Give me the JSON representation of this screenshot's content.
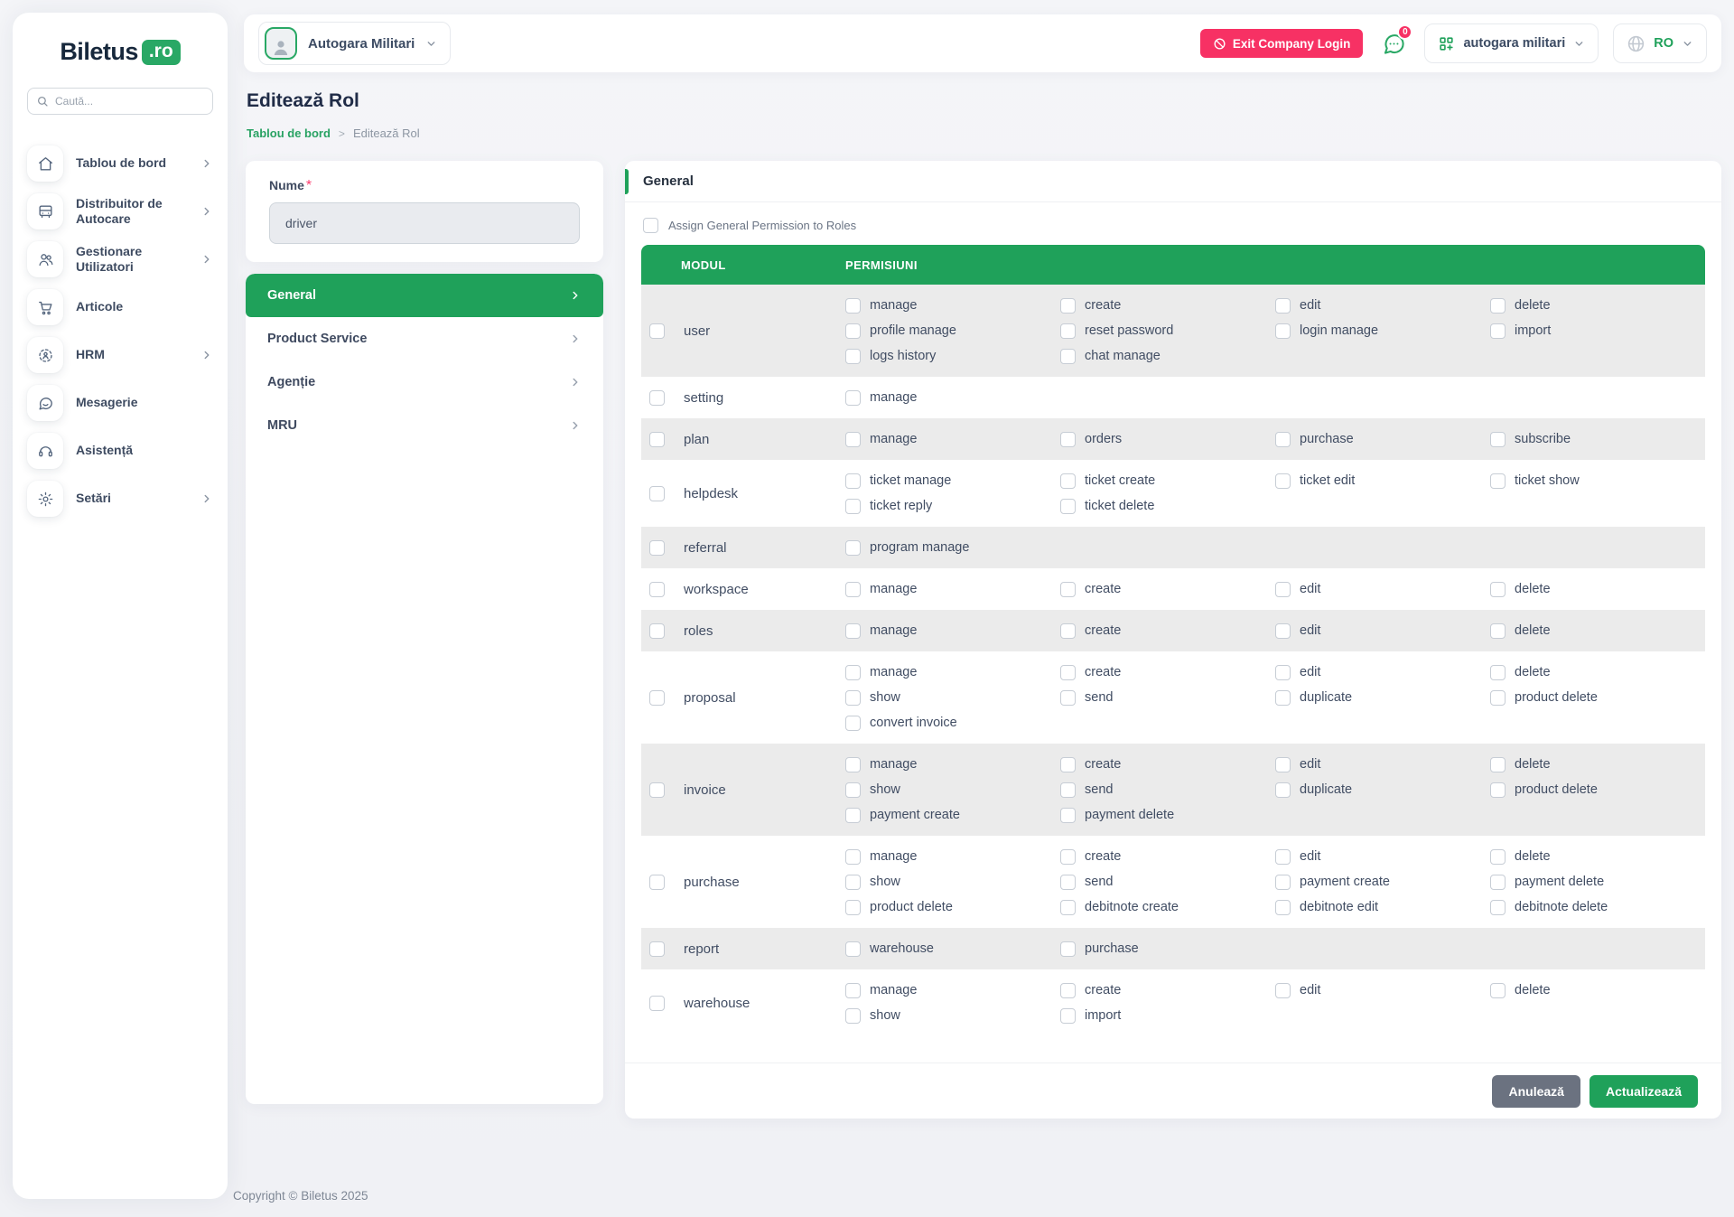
{
  "colors": {
    "primary_green": "#1fa15a",
    "pink": "#f73164",
    "stripe_gray": "#ebebeb",
    "dark_navy": "#17283c"
  },
  "sidebar": {
    "logo_text": "Biletus",
    "logo_badge": ".ro",
    "search_placeholder": "Caută...",
    "items": [
      {
        "label": "Tablou de bord",
        "icon": "home",
        "chevron": true
      },
      {
        "label": "Distribuitor de Autocare",
        "icon": "bus",
        "chevron": true
      },
      {
        "label": "Gestionare Utilizatori",
        "icon": "users",
        "chevron": true
      },
      {
        "label": "Articole",
        "icon": "cart",
        "chevron": false
      },
      {
        "label": "HRM",
        "icon": "hrm",
        "chevron": true
      },
      {
        "label": "Mesagerie",
        "icon": "chat",
        "chevron": false
      },
      {
        "label": "Asistență",
        "icon": "headset",
        "chevron": false
      },
      {
        "label": "Setări",
        "icon": "gear",
        "chevron": true
      }
    ]
  },
  "header": {
    "company_selector": "Autogara Militari",
    "exit_button": "Exit Company Login",
    "notification_badge": "0",
    "workspace_selector": "autogara militari",
    "language": "RO"
  },
  "page": {
    "title": "Editează Rol",
    "breadcrumb_home": "Tablou de bord",
    "breadcrumb_sep": ">",
    "breadcrumb_current": "Editează Rol"
  },
  "form": {
    "name_label": "Nume",
    "required_mark": "*",
    "name_value": "driver"
  },
  "tabs": [
    {
      "label": "General",
      "active": true
    },
    {
      "label": "Product Service",
      "active": false
    },
    {
      "label": "Agenție",
      "active": false
    },
    {
      "label": "MRU",
      "active": false
    }
  ],
  "panel": {
    "title": "General",
    "assign_checkbox_label": "Assign General Permission to Roles",
    "table": {
      "columns": [
        "MODUL",
        "PERMISIUNI"
      ],
      "rows": [
        {
          "module": "user",
          "permissions": [
            "manage",
            "create",
            "edit",
            "delete",
            "profile manage",
            "reset password",
            "login manage",
            "import",
            "logs history",
            "chat manage"
          ]
        },
        {
          "module": "setting",
          "permissions": [
            "manage"
          ]
        },
        {
          "module": "plan",
          "permissions": [
            "manage",
            "orders",
            "purchase",
            "subscribe"
          ]
        },
        {
          "module": "helpdesk",
          "permissions": [
            "ticket manage",
            "ticket create",
            "ticket edit",
            "ticket show",
            "ticket reply",
            "ticket delete"
          ]
        },
        {
          "module": "referral",
          "permissions": [
            "program manage"
          ]
        },
        {
          "module": "workspace",
          "permissions": [
            "manage",
            "create",
            "edit",
            "delete"
          ]
        },
        {
          "module": "roles",
          "permissions": [
            "manage",
            "create",
            "edit",
            "delete"
          ]
        },
        {
          "module": "proposal",
          "permissions": [
            "manage",
            "create",
            "edit",
            "delete",
            "show",
            "send",
            "duplicate",
            "product delete",
            "convert invoice"
          ]
        },
        {
          "module": "invoice",
          "permissions": [
            "manage",
            "create",
            "edit",
            "delete",
            "show",
            "send",
            "duplicate",
            "product delete",
            "payment create",
            "payment delete"
          ]
        },
        {
          "module": "purchase",
          "permissions": [
            "manage",
            "create",
            "edit",
            "delete",
            "show",
            "send",
            "payment create",
            "payment delete",
            "product delete",
            "debitnote create",
            "debitnote edit",
            "debitnote delete"
          ]
        },
        {
          "module": "report",
          "permissions": [
            "warehouse",
            "purchase"
          ]
        },
        {
          "module": "warehouse",
          "permissions": [
            "manage",
            "create",
            "edit",
            "delete",
            "show",
            "import"
          ]
        }
      ]
    },
    "cancel_button": "Anulează",
    "update_button": "Actualizează"
  },
  "footer": {
    "copyright": "Copyright © Biletus 2025"
  }
}
